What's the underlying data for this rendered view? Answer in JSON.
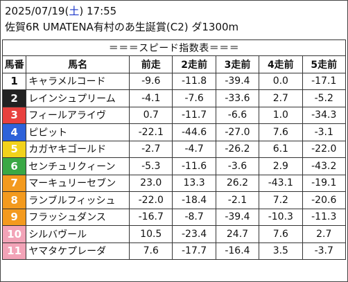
{
  "header": {
    "date": "2025/07/19",
    "weekday_open": "(",
    "weekday": "土",
    "weekday_close": ")",
    "time": "17:55",
    "race": "佐賀6R UMATENA有村のあ生誕賞(C2) ダ1300m"
  },
  "table": {
    "banner": "＝＝＝スピード指数表＝＝＝",
    "columns": [
      "馬番",
      "馬名",
      "前走",
      "2走前",
      "3走前",
      "4走前",
      "5走前"
    ],
    "rows": [
      {
        "num": "1",
        "name": "キャラメルコード",
        "bg": "#ffffff",
        "fg": "#111111",
        "vals": [
          "-9.6",
          "-11.8",
          "-39.4",
          "0.0",
          "-17.1"
        ]
      },
      {
        "num": "2",
        "name": "レインシュプリーム",
        "bg": "#222222",
        "fg": "#ffffff",
        "vals": [
          "-4.1",
          "-7.6",
          "-33.6",
          "2.7",
          "-5.2"
        ]
      },
      {
        "num": "3",
        "name": "フィールアライヴ",
        "bg": "#e8413e",
        "fg": "#ffffff",
        "vals": [
          "0.7",
          "-11.7",
          "-6.6",
          "1.0",
          "-34.3"
        ]
      },
      {
        "num": "4",
        "name": "ピピット",
        "bg": "#2e62d9",
        "fg": "#ffffff",
        "vals": [
          "-22.1",
          "-44.6",
          "-27.0",
          "7.6",
          "-3.1"
        ]
      },
      {
        "num": "5",
        "name": "カガヤキゴールド",
        "bg": "#f2d21b",
        "fg": "#ffffff",
        "vals": [
          "-2.7",
          "-4.7",
          "-26.2",
          "6.1",
          "-22.0"
        ]
      },
      {
        "num": "6",
        "name": "センチュリクィーン",
        "bg": "#3aa845",
        "fg": "#ffffff",
        "vals": [
          "-5.3",
          "-11.6",
          "-3.6",
          "2.9",
          "-43.2"
        ]
      },
      {
        "num": "7",
        "name": "マーキュリーセブン",
        "bg": "#f39a1e",
        "fg": "#ffffff",
        "vals": [
          "23.0",
          "13.3",
          "26.2",
          "-43.1",
          "-19.1"
        ]
      },
      {
        "num": "8",
        "name": "ランブルフィッシュ",
        "bg": "#f39a1e",
        "fg": "#ffffff",
        "vals": [
          "-22.0",
          "-18.4",
          "-2.1",
          "7.2",
          "-20.6"
        ]
      },
      {
        "num": "9",
        "name": "フラッシュダンス",
        "bg": "#f39a1e",
        "fg": "#ffffff",
        "vals": [
          "-16.7",
          "-8.7",
          "-39.4",
          "-10.3",
          "-11.3"
        ]
      },
      {
        "num": "10",
        "name": "シルバヴール",
        "bg": "#f2a3b7",
        "fg": "#ffffff",
        "vals": [
          "10.5",
          "-23.4",
          "24.7",
          "7.6",
          "2.7"
        ]
      },
      {
        "num": "11",
        "name": "ヤマタケプレーダ",
        "bg": "#f2a3b7",
        "fg": "#ffffff",
        "vals": [
          "7.6",
          "-17.7",
          "-16.4",
          "3.5",
          "-3.7"
        ]
      }
    ]
  }
}
